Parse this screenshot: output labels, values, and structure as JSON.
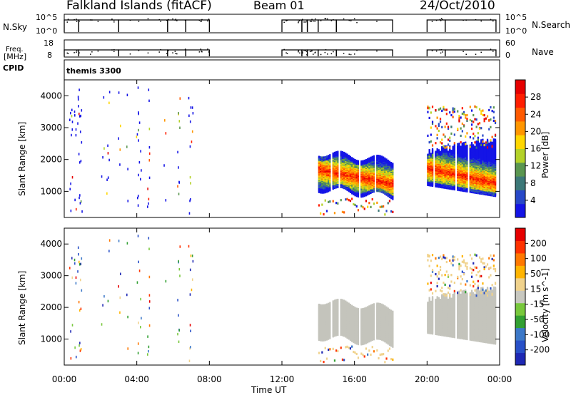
{
  "header": {
    "station": "Falkland Islands (fitACF)",
    "beam": "Beam 01",
    "date": "24/Oct/2010"
  },
  "strip_labels": {
    "nsky": "N.Sky",
    "nsky_top": "10^5",
    "nsky_bottom": "10^0",
    "freq_line1": "Freq.",
    "freq_line2": "[MHz]",
    "freq_top": "18",
    "freq_bottom": "8",
    "nsearch": "N.Search",
    "nsearch_top": "10^5",
    "nsearch_bottom": "10^0",
    "nave": "Nave",
    "nave_top": "60",
    "nave_bottom": "0",
    "cpid": "CPID",
    "cpid_value": "themis 3300"
  },
  "colors": {
    "power_scale": [
      "#1414e6",
      "#2848c8",
      "#3c7878",
      "#5a9650",
      "#b4d228",
      "#ffd700",
      "#ff9600",
      "#ff5a00",
      "#ff1e00",
      "#e60000"
    ],
    "velocity_scale": [
      "#1e28b4",
      "#2850c8",
      "#3c78c8",
      "#32a032",
      "#78c83c",
      "#c8c8c0",
      "#f0d28c",
      "#ffb400",
      "#ff7800",
      "#ff3200",
      "#e60000"
    ],
    "ground_scatter": "#c4c4bc"
  },
  "chart_data": [
    {
      "type": "heatmap",
      "name": "power",
      "ylabel": "Slant Range [km]",
      "xlabel": "Time UT",
      "x_ticks": [
        "00:00",
        "04:00",
        "08:00",
        "12:00",
        "16:00",
        "20:00",
        "00:00"
      ],
      "xlim_hours": [
        0,
        24
      ],
      "y_ticks": [
        1000,
        2000,
        3000,
        4000
      ],
      "ylim": [
        180,
        4500
      ],
      "colorbar_label": "Power [dB]",
      "colorbar_ticks": [
        "4",
        "8",
        "12",
        "16",
        "20",
        "24",
        "28"
      ],
      "colorbar_range": [
        0,
        30
      ],
      "echo_blocks_hours": [
        [
          14.0,
          18.1
        ],
        [
          20.0,
          23.8
        ]
      ]
    },
    {
      "type": "heatmap",
      "name": "velocity",
      "ylabel": "Slant Range [km]",
      "xlabel": "Time UT",
      "x_ticks": [
        "00:00",
        "04:00",
        "08:00",
        "12:00",
        "16:00",
        "20:00",
        "00:00"
      ],
      "xlim_hours": [
        0,
        24
      ],
      "y_ticks": [
        1000,
        2000,
        3000,
        4000
      ],
      "ylim": [
        180,
        4500
      ],
      "colorbar_label": "Velocity [m s^-1]",
      "colorbar_ticks": [
        "200",
        "100",
        "50",
        "15",
        "-15",
        "-50",
        "-100",
        "-200"
      ],
      "colorbar_range": [
        -250,
        250
      ],
      "ground_scatter_blocks_hours": [
        [
          14.0,
          18.1
        ],
        [
          20.0,
          23.8
        ]
      ]
    }
  ],
  "operation_periods_hours": [
    [
      0.0,
      0.8
    ],
    [
      0.8,
      3.0
    ],
    [
      3.0,
      5.7
    ],
    [
      5.7,
      6.7
    ],
    [
      6.7,
      8.0
    ],
    [
      12.0,
      13.1
    ],
    [
      13.1,
      13.4
    ],
    [
      13.4,
      14.0
    ],
    [
      14.0,
      15.0
    ],
    [
      15.0,
      18.1
    ],
    [
      20.0,
      21.0
    ],
    [
      21.0,
      23.8
    ]
  ]
}
